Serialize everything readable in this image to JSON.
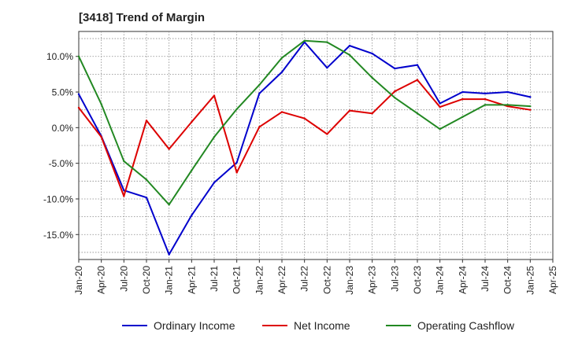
{
  "chart_data": {
    "type": "line",
    "title": "[3418]  Trend of Margin",
    "xlabel": "",
    "ylabel": "",
    "ylim": [
      -18.5,
      13.5
    ],
    "grid": true,
    "legend_placement": "bottom",
    "y_ticks": [
      10,
      5,
      0,
      -5,
      -10,
      -15
    ],
    "y_tick_labels": [
      "10.0%",
      "5.0%",
      "0.0%",
      "-5.0%",
      "-10.0%",
      "-15.0%"
    ],
    "x_tick_labels": [
      "Jan-20",
      "Apr-20",
      "Jul-20",
      "Oct-20",
      "Jan-21",
      "Apr-21",
      "Jul-21",
      "Oct-21",
      "Jan-22",
      "Apr-22",
      "Jul-22",
      "Oct-22",
      "Jan-23",
      "Apr-23",
      "Jul-23",
      "Oct-23",
      "Jan-24",
      "Apr-24",
      "Jul-24",
      "Oct-24",
      "Jan-25",
      "Apr-25"
    ],
    "x": [
      "Jan-20",
      "Apr-20",
      "Jul-20",
      "Oct-20",
      "Jan-21",
      "Apr-21",
      "Jul-21",
      "Oct-21",
      "Jan-22",
      "Apr-22",
      "Jul-22",
      "Oct-22",
      "Jan-23",
      "Apr-23",
      "Jul-23",
      "Oct-23",
      "Jan-24",
      "Apr-24",
      "Jul-24",
      "Oct-24",
      "Jan-25"
    ],
    "series": [
      {
        "name": "Ordinary Income",
        "color": "#0000cc",
        "values": [
          4.7,
          -1.2,
          -8.8,
          -9.8,
          -17.8,
          -12.3,
          -7.7,
          -4.9,
          4.8,
          7.8,
          12.0,
          8.4,
          11.5,
          10.4,
          8.3,
          8.8,
          3.4,
          5.0,
          4.8,
          5.0,
          4.3
        ]
      },
      {
        "name": "Net Income",
        "color": "#dd0000",
        "values": [
          2.8,
          -1.3,
          -9.6,
          1.0,
          -3.0,
          0.8,
          4.5,
          -6.3,
          0.1,
          2.2,
          1.3,
          -0.9,
          2.4,
          2.0,
          5.1,
          6.7,
          2.9,
          4.0,
          4.0,
          3.0,
          2.5
        ]
      },
      {
        "name": "Operating Cashflow",
        "color": "#228822",
        "values": [
          10.0,
          3.3,
          -4.7,
          -7.3,
          -10.8,
          -6.0,
          -1.3,
          2.6,
          6.0,
          9.8,
          12.2,
          12.0,
          10.2,
          7.0,
          4.2,
          2.0,
          -0.2,
          1.5,
          3.2,
          3.2,
          3.0
        ]
      }
    ]
  }
}
